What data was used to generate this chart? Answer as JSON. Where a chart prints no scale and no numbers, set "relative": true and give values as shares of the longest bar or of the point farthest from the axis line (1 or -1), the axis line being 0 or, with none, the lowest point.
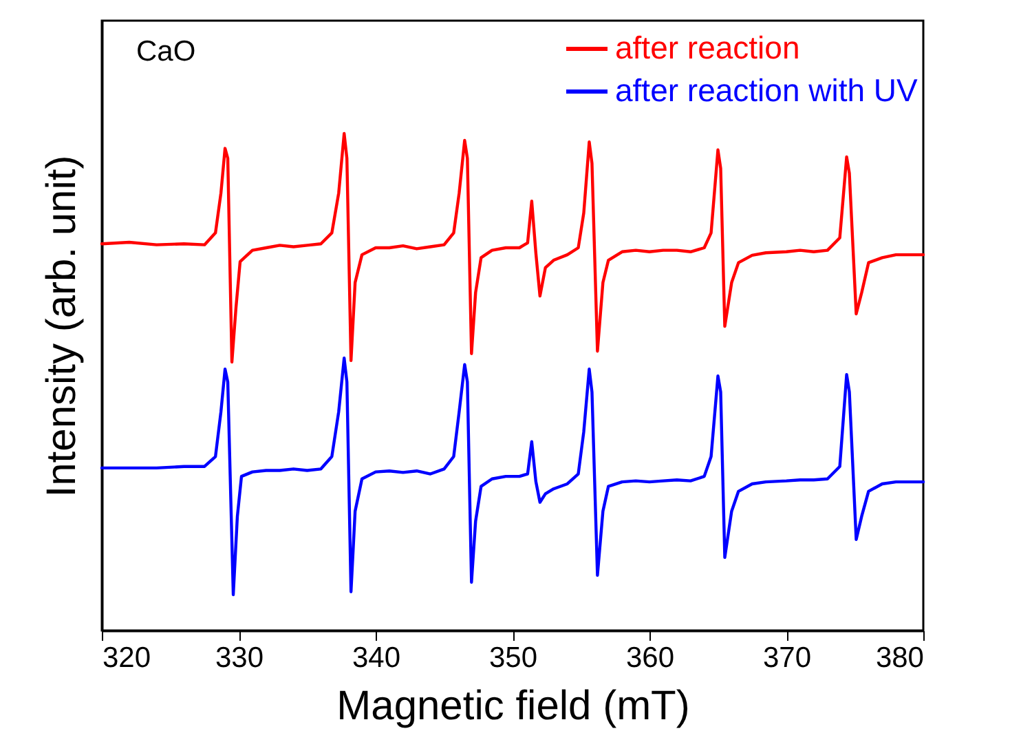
{
  "chart_data": {
    "type": "line",
    "xlabel": "Magnetic field (mT)",
    "ylabel": "Intensity (arb. unit)",
    "relative": true,
    "xlim": [
      320,
      380
    ],
    "xticks": [
      320,
      330,
      340,
      350,
      360,
      370,
      380
    ],
    "legend": "top right",
    "line_style": "solid",
    "annotations": [
      "CaO"
    ],
    "series": [
      {
        "name": "after reaction",
        "color": "#ff0000",
        "x": [
          320,
          322,
          324,
          326,
          327.5,
          328.3,
          328.7,
          329.0,
          329.2,
          329.5,
          329.8,
          330.1,
          331,
          332,
          333,
          334,
          335,
          336,
          336.8,
          337.3,
          337.7,
          337.9,
          338.2,
          338.5,
          339,
          340,
          341,
          342,
          343,
          344,
          345,
          345.7,
          346.1,
          346.5,
          346.7,
          347.0,
          347.3,
          347.7,
          348.5,
          349.5,
          350.5,
          351.1,
          351.4,
          351.7,
          352.0,
          352.4,
          353,
          354,
          354.8,
          355.2,
          355.6,
          355.8,
          356.2,
          356.6,
          357,
          358,
          359,
          360,
          361,
          362,
          363,
          364,
          364.5,
          365.0,
          365.2,
          365.5,
          366,
          366.5,
          367.5,
          368.5,
          370,
          371,
          372,
          373,
          373.9,
          374.4,
          374.6,
          375.1,
          375.5,
          376,
          377,
          378,
          379,
          380
        ],
        "values": [
          0.778,
          0.781,
          0.776,
          0.778,
          0.776,
          0.8,
          0.88,
          0.97,
          0.95,
          0.54,
          0.65,
          0.742,
          0.765,
          0.77,
          0.775,
          0.772,
          0.775,
          0.778,
          0.8,
          0.88,
          1.0,
          0.95,
          0.543,
          0.7,
          0.756,
          0.77,
          0.77,
          0.774,
          0.768,
          0.772,
          0.776,
          0.8,
          0.88,
          0.986,
          0.95,
          0.557,
          0.68,
          0.75,
          0.765,
          0.77,
          0.77,
          0.78,
          0.864,
          0.76,
          0.673,
          0.73,
          0.745,
          0.756,
          0.77,
          0.84,
          0.983,
          0.94,
          0.562,
          0.7,
          0.745,
          0.762,
          0.765,
          0.762,
          0.765,
          0.765,
          0.762,
          0.77,
          0.8,
          0.967,
          0.93,
          0.612,
          0.7,
          0.74,
          0.755,
          0.76,
          0.762,
          0.765,
          0.762,
          0.765,
          0.79,
          0.953,
          0.92,
          0.637,
          0.68,
          0.74,
          0.75,
          0.756,
          0.756,
          0.756
        ]
      },
      {
        "name": "after reaction with UV",
        "color": "#0000ff",
        "x": [
          320,
          322,
          324,
          326,
          327.5,
          328.3,
          328.7,
          329.0,
          329.2,
          329.6,
          329.9,
          330.2,
          331,
          332,
          333,
          334,
          335,
          336,
          336.8,
          337.3,
          337.7,
          337.9,
          338.2,
          338.5,
          339,
          340,
          341,
          342,
          343,
          344,
          345,
          345.7,
          346.1,
          346.5,
          346.7,
          347.0,
          347.3,
          347.7,
          348.5,
          349.5,
          350.5,
          351.1,
          351.4,
          351.7,
          352.0,
          352.4,
          353,
          354,
          354.8,
          355.2,
          355.6,
          355.8,
          356.2,
          356.6,
          357,
          358,
          359,
          360,
          361,
          362,
          363,
          364,
          364.5,
          365.0,
          365.2,
          365.5,
          366,
          366.5,
          367.5,
          368.5,
          370,
          371,
          372,
          373,
          373.9,
          374.4,
          374.6,
          375.1,
          375.5,
          376,
          377,
          378,
          379,
          380
        ],
        "values": [
          0.327,
          0.327,
          0.327,
          0.33,
          0.33,
          0.35,
          0.44,
          0.526,
          0.5,
          0.072,
          0.23,
          0.31,
          0.319,
          0.322,
          0.322,
          0.325,
          0.322,
          0.325,
          0.35,
          0.44,
          0.548,
          0.5,
          0.078,
          0.24,
          0.305,
          0.319,
          0.321,
          0.318,
          0.321,
          0.315,
          0.325,
          0.35,
          0.44,
          0.535,
          0.5,
          0.097,
          0.22,
          0.29,
          0.305,
          0.31,
          0.31,
          0.315,
          0.38,
          0.3,
          0.258,
          0.275,
          0.285,
          0.295,
          0.315,
          0.4,
          0.526,
          0.48,
          0.111,
          0.24,
          0.29,
          0.299,
          0.301,
          0.299,
          0.301,
          0.303,
          0.301,
          0.31,
          0.35,
          0.512,
          0.48,
          0.147,
          0.24,
          0.28,
          0.295,
          0.299,
          0.301,
          0.303,
          0.303,
          0.305,
          0.33,
          0.515,
          0.48,
          0.183,
          0.23,
          0.28,
          0.295,
          0.299,
          0.299,
          0.299
        ]
      }
    ]
  }
}
